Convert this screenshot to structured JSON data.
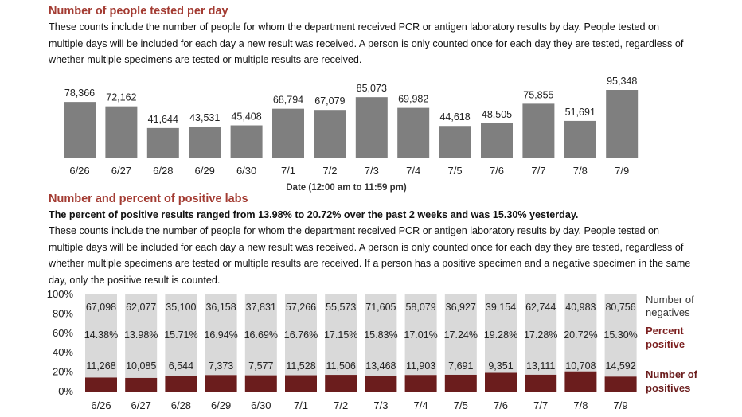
{
  "section1": {
    "title": "Number of people tested per day",
    "description": "These counts include the number of people for whom the department received PCR or antigen laboratory results by day. People tested on multiple days will be included for each day a new result was received. A person is only counted once for each day they are tested, regardless of whether multiple specimens are tested or multiple results are received."
  },
  "section2": {
    "title": "Number and percent of positive labs",
    "summary": "The percent of positive results ranged from 13.98% to 20.72% over the past 2 weeks and was 15.30% yesterday.",
    "description": "These counts include the number of people for whom the department received PCR or antigen laboratory results by day. People tested on multiple days will be included for each day a new result was received. A person is only counted once for each day they are tested, regardless of whether multiple specimens are tested or multiple results are received. If a person has a positive specimen and a negative specimen in the same day, only the positive result is counted."
  },
  "colors": {
    "heading": "#a33b32",
    "bar_gray": "#7f7f7f",
    "negatives_fill": "#d9d9d9",
    "positives_fill": "#6b1d1d",
    "percent_text": "#7b1f1f"
  },
  "chart_data": [
    {
      "type": "bar",
      "categories": [
        "6/26",
        "6/27",
        "6/28",
        "6/29",
        "6/30",
        "7/1",
        "7/2",
        "7/3",
        "7/4",
        "7/5",
        "7/6",
        "7/7",
        "7/8",
        "7/9"
      ],
      "values": [
        78366,
        72162,
        41644,
        43531,
        45408,
        68794,
        67079,
        85073,
        69982,
        44618,
        48505,
        75855,
        51691,
        95348
      ],
      "value_labels": [
        "78,366",
        "72,162",
        "41,644",
        "43,531",
        "45,408",
        "68,794",
        "67,079",
        "85,073",
        "69,982",
        "44,618",
        "48,505",
        "75,855",
        "51,691",
        "95,348"
      ],
      "xlabel": "Date (12:00 am to 11:59 pm)",
      "ylabel": "",
      "grid": false
    },
    {
      "type": "bar",
      "stacked": "percent",
      "categories": [
        "6/26",
        "6/27",
        "6/28",
        "6/29",
        "6/30",
        "7/1",
        "7/2",
        "7/3",
        "7/4",
        "7/5",
        "7/6",
        "7/7",
        "7/8",
        "7/9"
      ],
      "yticks": [
        "0%",
        "20%",
        "40%",
        "60%",
        "80%",
        "100%"
      ],
      "ylim": [
        0,
        100
      ],
      "series": [
        {
          "name": "Number of positives",
          "values": [
            11268,
            10085,
            6544,
            7373,
            7577,
            11528,
            11506,
            13468,
            11903,
            7691,
            9351,
            13111,
            10708,
            14592
          ],
          "labels": [
            "11,268",
            "10,085",
            "6,544",
            "7,373",
            "7,577",
            "11,528",
            "11,506",
            "13,468",
            "11,903",
            "7,691",
            "9,351",
            "13,111",
            "10,708",
            "14,592"
          ]
        },
        {
          "name": "Number of negatives",
          "values": [
            67098,
            62077,
            35100,
            36158,
            37831,
            57266,
            55573,
            71605,
            58079,
            36927,
            39154,
            62744,
            40983,
            80756
          ],
          "labels": [
            "67,098",
            "62,077",
            "35,100",
            "36,158",
            "37,831",
            "57,266",
            "55,573",
            "71,605",
            "58,079",
            "36,927",
            "39,154",
            "62,744",
            "40,983",
            "80,756"
          ]
        }
      ],
      "percent_positive": {
        "name": "Percent positive",
        "values": [
          14.38,
          13.98,
          15.71,
          16.94,
          16.69,
          16.76,
          17.15,
          15.83,
          17.01,
          17.24,
          19.28,
          17.28,
          20.72,
          15.3
        ],
        "labels": [
          "14.38%",
          "13.98%",
          "15.71%",
          "16.94%",
          "16.69%",
          "16.76%",
          "17.15%",
          "15.83%",
          "17.01%",
          "17.24%",
          "19.28%",
          "17.28%",
          "20.72%",
          "15.30%"
        ]
      },
      "legend": {
        "negatives": [
          "Number of",
          "negatives"
        ],
        "percent": [
          "Percent",
          "positive"
        ],
        "positives": [
          "Number of",
          "positives"
        ],
        "placement": "right"
      }
    }
  ]
}
